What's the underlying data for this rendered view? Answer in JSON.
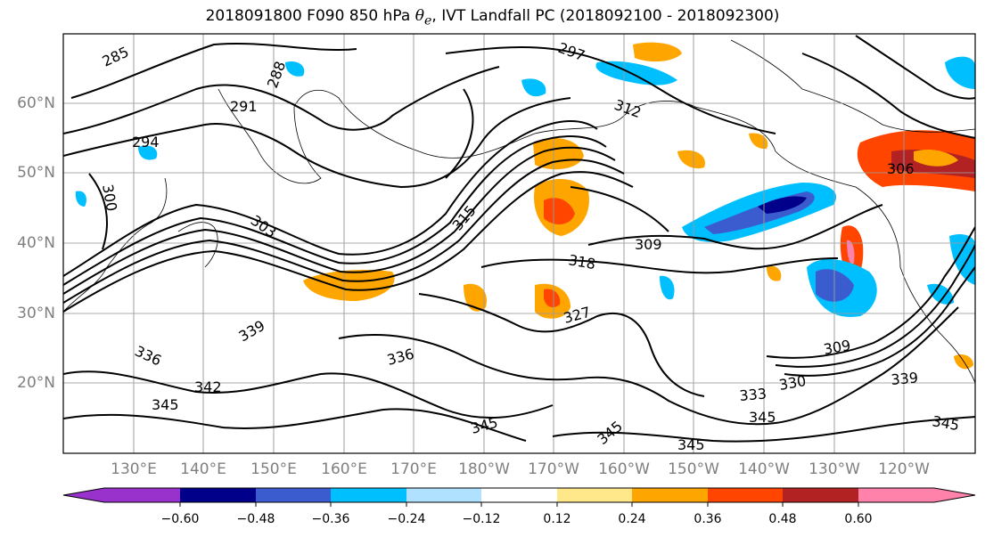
{
  "title": {
    "prefix": "2018091800 F090 850 hPa ",
    "symbol": "θ",
    "subscript": "e",
    "suffix": ", IVT Landfall PC (2018092100 - 2018092300)"
  },
  "lat_labels": [
    "60°N",
    "50°N",
    "40°N",
    "30°N",
    "20°N"
  ],
  "lon_labels": [
    "130°E",
    "140°E",
    "150°E",
    "160°E",
    "170°E",
    "180°W",
    "170°W",
    "160°W",
    "150°W",
    "140°W",
    "130°W",
    "120°W"
  ],
  "colorbar": {
    "colors": [
      "#9932cc",
      "#00008b",
      "#3a5ccf",
      "#00bfff",
      "#b0e2ff",
      "#ffffff",
      "#ffe88a",
      "#ffa500",
      "#ff4500",
      "#b22222",
      "#ff82ab"
    ],
    "ticks": [
      "−0.60",
      "−0.48",
      "−0.36",
      "−0.24",
      "−0.12",
      "0.12",
      "0.24",
      "0.36",
      "0.48",
      "0.60"
    ]
  },
  "contour_labels": [
    "285",
    "288",
    "291",
    "294",
    "297",
    "300",
    "303",
    "306",
    "309",
    "312",
    "315",
    "318",
    "327",
    "330",
    "333",
    "336",
    "339",
    "342",
    "345"
  ]
}
